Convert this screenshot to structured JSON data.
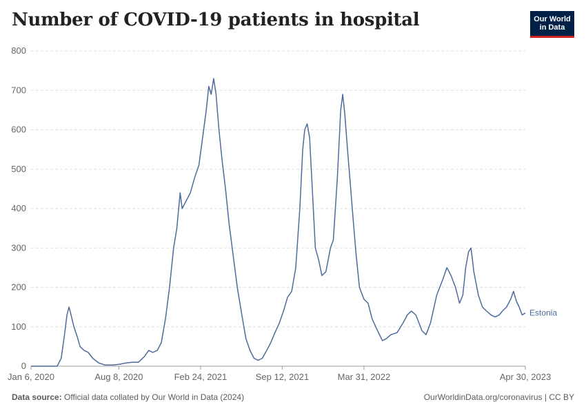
{
  "title": "Number of COVID-19 patients in hospital",
  "logo": {
    "line1": "Our World",
    "line2": "in Data"
  },
  "footer": {
    "source_label": "Data source:",
    "source_text": "Official data collated by Our World in Data (2024)",
    "right_text": "OurWorldinData.org/coronavirus | CC BY"
  },
  "colors": {
    "series": "#4c6a9c",
    "grid": "#dddddd",
    "axis": "#666666"
  },
  "chart_data": {
    "type": "line",
    "title": "Number of COVID-19 patients in hospital",
    "xlabel": "",
    "ylabel": "",
    "ylim": [
      0,
      800
    ],
    "y_ticks": [
      0,
      100,
      200,
      300,
      400,
      500,
      600,
      700,
      800
    ],
    "x_ticks": [
      {
        "date": "2020-01-06",
        "label": "Jan 6, 2020"
      },
      {
        "date": "2020-08-08",
        "label": "Aug 8, 2020"
      },
      {
        "date": "2021-02-24",
        "label": "Feb 24, 2021"
      },
      {
        "date": "2021-09-12",
        "label": "Sep 12, 2021"
      },
      {
        "date": "2022-03-31",
        "label": "Mar 31, 2022"
      },
      {
        "date": "2023-04-30",
        "label": "Apr 30, 2023"
      }
    ],
    "xlim": [
      "2020-01-06",
      "2023-04-30"
    ],
    "series": [
      {
        "name": "Estonia",
        "points": [
          [
            "2020-01-06",
            0
          ],
          [
            "2020-03-10",
            0
          ],
          [
            "2020-03-20",
            20
          ],
          [
            "2020-03-28",
            80
          ],
          [
            "2020-04-03",
            130
          ],
          [
            "2020-04-08",
            150
          ],
          [
            "2020-04-13",
            130
          ],
          [
            "2020-04-20",
            100
          ],
          [
            "2020-04-28",
            75
          ],
          [
            "2020-05-05",
            50
          ],
          [
            "2020-05-15",
            40
          ],
          [
            "2020-05-25",
            35
          ],
          [
            "2020-06-05",
            20
          ],
          [
            "2020-06-20",
            8
          ],
          [
            "2020-07-05",
            3
          ],
          [
            "2020-07-25",
            3
          ],
          [
            "2020-08-10",
            5
          ],
          [
            "2020-08-25",
            8
          ],
          [
            "2020-09-10",
            10
          ],
          [
            "2020-09-25",
            10
          ],
          [
            "2020-10-10",
            25
          ],
          [
            "2020-10-20",
            40
          ],
          [
            "2020-10-30",
            35
          ],
          [
            "2020-11-10",
            40
          ],
          [
            "2020-11-20",
            60
          ],
          [
            "2020-11-30",
            120
          ],
          [
            "2020-12-10",
            200
          ],
          [
            "2020-12-20",
            300
          ],
          [
            "2020-12-28",
            350
          ],
          [
            "2021-01-05",
            440
          ],
          [
            "2021-01-10",
            400
          ],
          [
            "2021-01-20",
            420
          ],
          [
            "2021-01-30",
            440
          ],
          [
            "2021-02-10",
            480
          ],
          [
            "2021-02-20",
            510
          ],
          [
            "2021-03-01",
            580
          ],
          [
            "2021-03-10",
            650
          ],
          [
            "2021-03-16",
            710
          ],
          [
            "2021-03-22",
            690
          ],
          [
            "2021-03-28",
            730
          ],
          [
            "2021-04-03",
            690
          ],
          [
            "2021-04-10",
            600
          ],
          [
            "2021-04-18",
            520
          ],
          [
            "2021-04-26",
            450
          ],
          [
            "2021-05-05",
            360
          ],
          [
            "2021-05-15",
            280
          ],
          [
            "2021-05-25",
            200
          ],
          [
            "2021-06-05",
            130
          ],
          [
            "2021-06-15",
            70
          ],
          [
            "2021-06-25",
            40
          ],
          [
            "2021-07-05",
            20
          ],
          [
            "2021-07-15",
            15
          ],
          [
            "2021-07-25",
            20
          ],
          [
            "2021-08-05",
            40
          ],
          [
            "2021-08-15",
            60
          ],
          [
            "2021-08-25",
            85
          ],
          [
            "2021-09-05",
            110
          ],
          [
            "2021-09-15",
            140
          ],
          [
            "2021-09-25",
            175
          ],
          [
            "2021-10-05",
            190
          ],
          [
            "2021-10-15",
            250
          ],
          [
            "2021-10-25",
            400
          ],
          [
            "2021-11-01",
            550
          ],
          [
            "2021-11-06",
            600
          ],
          [
            "2021-11-12",
            615
          ],
          [
            "2021-11-18",
            580
          ],
          [
            "2021-11-25",
            440
          ],
          [
            "2021-12-02",
            300
          ],
          [
            "2021-12-10",
            270
          ],
          [
            "2021-12-18",
            230
          ],
          [
            "2021-12-28",
            240
          ],
          [
            "2022-01-08",
            300
          ],
          [
            "2022-01-15",
            320
          ],
          [
            "2022-01-25",
            480
          ],
          [
            "2022-02-02",
            650
          ],
          [
            "2022-02-07",
            690
          ],
          [
            "2022-02-12",
            640
          ],
          [
            "2022-02-18",
            560
          ],
          [
            "2022-02-25",
            470
          ],
          [
            "2022-03-04",
            380
          ],
          [
            "2022-03-12",
            280
          ],
          [
            "2022-03-20",
            200
          ],
          [
            "2022-03-31",
            170
          ],
          [
            "2022-04-10",
            160
          ],
          [
            "2022-04-20",
            120
          ],
          [
            "2022-05-01",
            95
          ],
          [
            "2022-05-15",
            65
          ],
          [
            "2022-05-25",
            70
          ],
          [
            "2022-06-05",
            80
          ],
          [
            "2022-06-20",
            85
          ],
          [
            "2022-07-05",
            110
          ],
          [
            "2022-07-15",
            130
          ],
          [
            "2022-07-25",
            140
          ],
          [
            "2022-08-05",
            130
          ],
          [
            "2022-08-20",
            90
          ],
          [
            "2022-08-30",
            80
          ],
          [
            "2022-09-10",
            110
          ],
          [
            "2022-09-25",
            180
          ],
          [
            "2022-10-10",
            220
          ],
          [
            "2022-10-20",
            250
          ],
          [
            "2022-10-30",
            230
          ],
          [
            "2022-11-10",
            200
          ],
          [
            "2022-11-20",
            160
          ],
          [
            "2022-11-28",
            180
          ],
          [
            "2022-12-05",
            250
          ],
          [
            "2022-12-12",
            290
          ],
          [
            "2022-12-18",
            300
          ],
          [
            "2022-12-25",
            240
          ],
          [
            "2023-01-05",
            180
          ],
          [
            "2023-01-15",
            150
          ],
          [
            "2023-01-25",
            140
          ],
          [
            "2023-02-05",
            130
          ],
          [
            "2023-02-15",
            125
          ],
          [
            "2023-02-25",
            130
          ],
          [
            "2023-03-05",
            140
          ],
          [
            "2023-03-15",
            150
          ],
          [
            "2023-03-25",
            170
          ],
          [
            "2023-04-01",
            190
          ],
          [
            "2023-04-08",
            165
          ],
          [
            "2023-04-15",
            150
          ],
          [
            "2023-04-22",
            130
          ],
          [
            "2023-04-30",
            135
          ]
        ]
      }
    ]
  }
}
